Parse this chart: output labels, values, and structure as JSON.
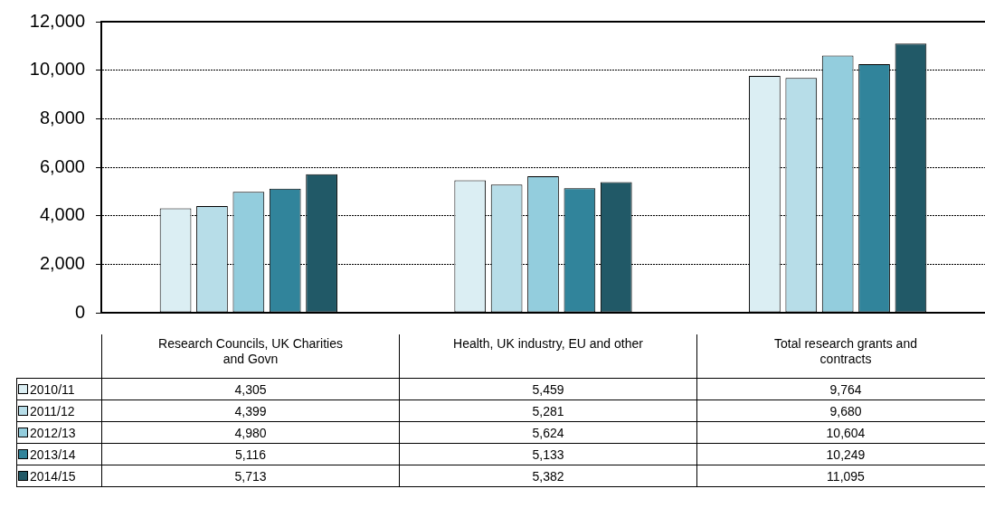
{
  "chart_data": {
    "type": "bar",
    "categories": [
      "Research Councils, UK Charities and Govn",
      "Health, UK industry, EU and other",
      "Total research grants and contracts"
    ],
    "series": [
      {
        "name": "2010/11",
        "color": "#dbeef3",
        "values": [
          4305,
          5459,
          9764
        ],
        "value_labels": [
          "4,305",
          "5,459",
          "9,764"
        ]
      },
      {
        "name": "2011/12",
        "color": "#b7dde8",
        "values": [
          4399,
          5281,
          9680
        ],
        "value_labels": [
          "4,399",
          "5,281",
          "9,680"
        ]
      },
      {
        "name": "2012/13",
        "color": "#93cddd",
        "values": [
          4980,
          5624,
          10604
        ],
        "value_labels": [
          "4,980",
          "5,624",
          "10,604"
        ]
      },
      {
        "name": "2013/14",
        "color": "#31849b",
        "values": [
          5116,
          5133,
          10249
        ],
        "value_labels": [
          "5,116",
          "5,133",
          "10,249"
        ]
      },
      {
        "name": "2014/15",
        "color": "#215967",
        "values": [
          5713,
          5382,
          11095
        ],
        "value_labels": [
          "5,713",
          "5,382",
          "11,095"
        ]
      }
    ],
    "ylim": [
      0,
      12000
    ],
    "yticks": [
      0,
      {
        "value": 2000,
        "label": "2,000"
      },
      {
        "value": 4000,
        "label": "4,000"
      },
      {
        "value": 6000,
        "label": "6,000"
      },
      {
        "value": 8000,
        "label": "8,000"
      },
      {
        "value": 10000,
        "label": "10,000"
      },
      {
        "value": 12000,
        "label": "12,000"
      }
    ],
    "grid": "y",
    "legend": "bottom left"
  }
}
